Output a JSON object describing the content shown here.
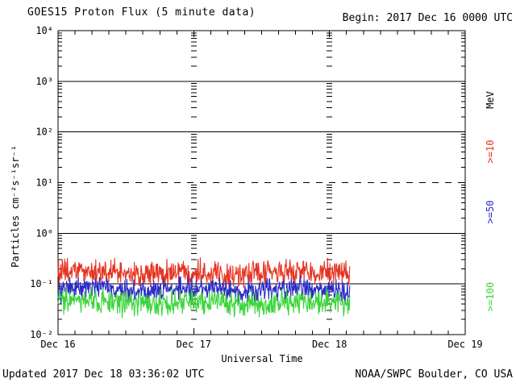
{
  "header": {
    "title": "GOES15 Proton Flux (5 minute data)",
    "begin_label": "Begin: 2017 Dec 16 0000 UTC"
  },
  "footer": {
    "updated": "Updated 2017 Dec 18 03:36:02 UTC",
    "source": "NOAA/SWPC Boulder, CO USA"
  },
  "chart_data": {
    "type": "line",
    "title": "GOES15 Proton Flux (5 minute data)",
    "begin": "2017 Dec 16 0000 UTC",
    "updated": "2017 Dec 18 03:36:02 UTC",
    "xlabel": "Universal Time",
    "ylabel": "Particles cm⁻²s⁻¹sr⁻¹",
    "right_axis_unit": "MeV",
    "x_tick_labels": [
      "Dec 16",
      "Dec 17",
      "Dec 18",
      "Dec 19"
    ],
    "x_range_hours": [
      0,
      72
    ],
    "y_tick_labels": [
      "10⁴",
      "10³",
      "10²",
      "10¹",
      "10⁰",
      "10⁻¹",
      "10⁻²"
    ],
    "y_tick_exponents": [
      4,
      3,
      2,
      1,
      0,
      -1,
      -2
    ],
    "ylim": [
      0.01,
      10000
    ],
    "grid": {
      "solid_line_exponents": [
        3,
        2,
        0,
        -1
      ],
      "dashed_line_exponents": [
        1
      ],
      "day_boundary_hours": [
        24,
        48
      ],
      "minor_time_tick_hours": 3
    },
    "legend_position": "right",
    "series": [
      {
        "name": ">=10",
        "unit": "MeV",
        "color": "#e63320",
        "log10_median": -0.78,
        "log10_amplitude": 0.31,
        "approx_flux_range": [
          0.09,
          0.35
        ]
      },
      {
        "name": ">=50",
        "unit": "MeV",
        "color": "#2a2ac8",
        "log10_median": -1.12,
        "log10_amplitude": 0.28,
        "approx_flux_range": [
          0.04,
          0.14
        ]
      },
      {
        "name": ">=100",
        "unit": "MeV",
        "color": "#3bd53b",
        "log10_median": -1.37,
        "log10_amplitude": 0.3,
        "approx_flux_range": [
          0.02,
          0.09
        ]
      }
    ],
    "data_start_hours": 0,
    "data_end_hours": 51.6,
    "cadence_minutes": 5
  }
}
